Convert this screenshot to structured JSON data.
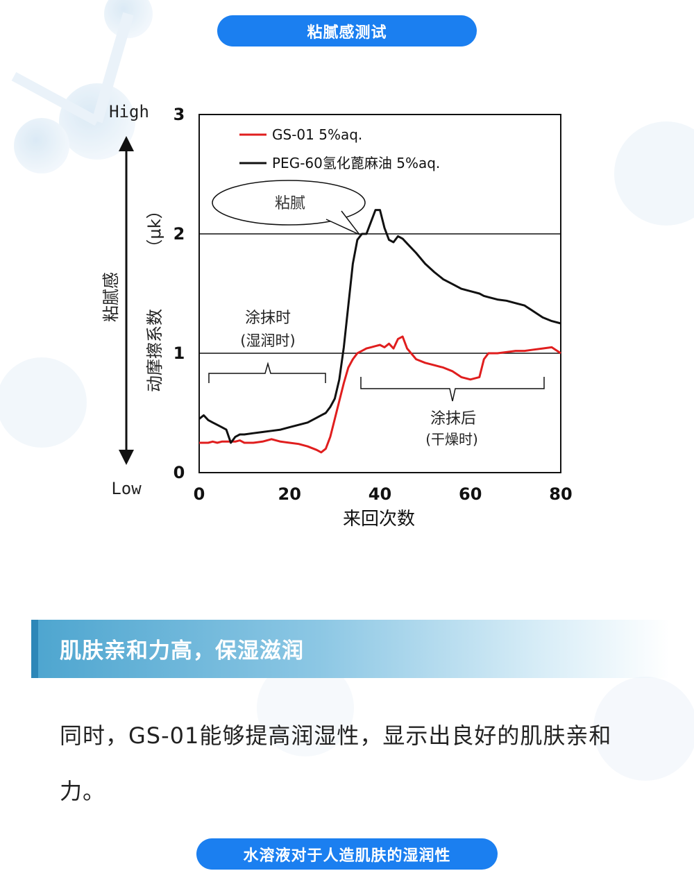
{
  "header": {
    "title": "粘腻感测试"
  },
  "chart_data": {
    "type": "line",
    "x": [
      0,
      1,
      2,
      3,
      4,
      5,
      6,
      7,
      8,
      9,
      10,
      12,
      14,
      16,
      18,
      20,
      22,
      24,
      26,
      27,
      28,
      29,
      30,
      31,
      32,
      33,
      34,
      35,
      36,
      37,
      38,
      39,
      40,
      41,
      42,
      43,
      44,
      45,
      46,
      48,
      50,
      52,
      54,
      56,
      58,
      60,
      62,
      63,
      64,
      66,
      68,
      70,
      72,
      74,
      76,
      78,
      80
    ],
    "series": [
      {
        "name": "GS-01 5%aq.",
        "color": "#e01e1e",
        "values": [
          0.25,
          0.25,
          0.25,
          0.26,
          0.25,
          0.26,
          0.26,
          0.26,
          0.26,
          0.27,
          0.25,
          0.25,
          0.26,
          0.28,
          0.26,
          0.25,
          0.24,
          0.22,
          0.19,
          0.17,
          0.2,
          0.3,
          0.45,
          0.6,
          0.75,
          0.88,
          0.95,
          1.0,
          1.02,
          1.04,
          1.05,
          1.06,
          1.07,
          1.05,
          1.08,
          1.04,
          1.12,
          1.14,
          1.04,
          0.95,
          0.92,
          0.9,
          0.88,
          0.85,
          0.8,
          0.78,
          0.8,
          0.95,
          1.0,
          1.0,
          1.01,
          1.02,
          1.02,
          1.03,
          1.04,
          1.05,
          1.0
        ]
      },
      {
        "name": "PEG-60氢化蓖麻油 5%aq.",
        "color": "#111111",
        "values": [
          0.45,
          0.48,
          0.44,
          0.42,
          0.4,
          0.38,
          0.36,
          0.25,
          0.3,
          0.32,
          0.32,
          0.33,
          0.34,
          0.35,
          0.36,
          0.38,
          0.4,
          0.42,
          0.46,
          0.48,
          0.5,
          0.55,
          0.62,
          0.78,
          1.05,
          1.4,
          1.75,
          1.95,
          2.0,
          2.0,
          2.1,
          2.2,
          2.2,
          2.05,
          1.95,
          1.93,
          1.98,
          1.96,
          1.92,
          1.84,
          1.75,
          1.68,
          1.62,
          1.58,
          1.54,
          1.52,
          1.5,
          1.48,
          1.47,
          1.45,
          1.44,
          1.42,
          1.4,
          1.35,
          1.3,
          1.27,
          1.25
        ]
      }
    ],
    "ylim": [
      0,
      3
    ],
    "xlim": [
      0,
      80
    ],
    "xticks": [
      "0",
      "20",
      "40",
      "60",
      "80"
    ],
    "yticks": [
      "0",
      "1",
      "2",
      "3"
    ],
    "xlabel": "来回次数",
    "ylabel": "动摩擦系数",
    "ylabel_unit": "（μk）",
    "reference_lines": [
      1,
      2
    ],
    "side_axis": {
      "label": "粘腻感",
      "high": "High",
      "low": "Low"
    },
    "annotations": {
      "callout": "粘腻",
      "wet_phase_line1": "涂抹时",
      "wet_phase_line2": "(湿润时)",
      "dry_phase_line1": "涂抹后",
      "dry_phase_line2": "(干燥时)"
    },
    "legend_position": "top-left"
  },
  "section": {
    "heading": "肌肤亲和力高，保湿滋润"
  },
  "body": {
    "paragraph": "同时，GS-01能够提高润湿性，显示出良好的肌肤亲和力。"
  },
  "footer": {
    "title": "水溶液对于人造肌肤的湿润性"
  }
}
